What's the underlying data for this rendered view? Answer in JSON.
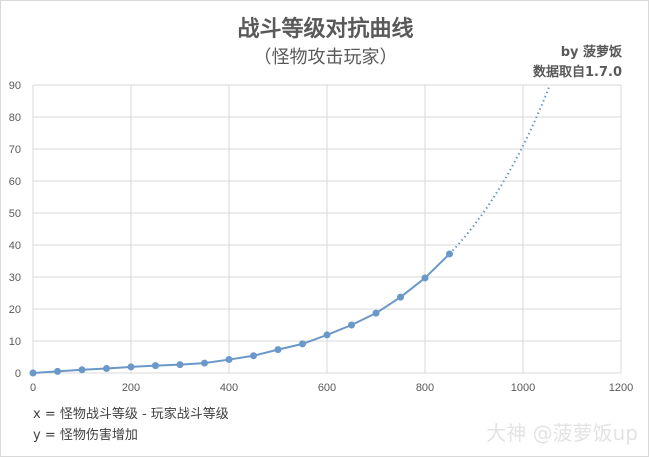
{
  "chart_data": {
    "type": "line",
    "title": "战斗等级对抗曲线",
    "subtitle": "（怪物攻击玩家）",
    "credit": [
      "by 菠萝饭",
      "数据取自1.7.0"
    ],
    "notes": [
      "x = 怪物战斗等级 - 玩家战斗等级",
      "y = 怪物伤害增加"
    ],
    "xlim": [
      0,
      1200
    ],
    "ylim": [
      0,
      90
    ],
    "xticks": [
      0,
      200,
      400,
      600,
      800,
      1000,
      1200
    ],
    "yticks": [
      0,
      10,
      20,
      30,
      40,
      50,
      60,
      70,
      80,
      90
    ],
    "grid": true,
    "series_color": "#6a98c8",
    "x": [
      0,
      50,
      100,
      150,
      200,
      250,
      300,
      350,
      400,
      450,
      500,
      550,
      600,
      650,
      700,
      750,
      800,
      850
    ],
    "y": [
      0,
      0.5,
      1,
      1.4,
      1.9,
      2.3,
      2.6,
      3.1,
      4.2,
      5.4,
      7.3,
      9.1,
      11.9,
      15,
      18.7,
      23.7,
      29.7,
      37.2
    ],
    "trendline": {
      "style": "dotted",
      "type": "exponential"
    }
  },
  "watermark": "大神 @菠萝饭up"
}
